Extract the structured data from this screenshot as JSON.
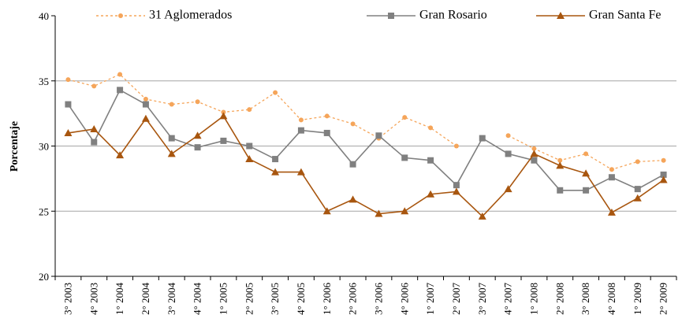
{
  "chart_data": {
    "type": "line",
    "y_label": "Porcentaje",
    "categories": [
      "3° 2003",
      "4° 2003",
      "1° 2004",
      "2° 2004",
      "3° 2004",
      "4° 2004",
      "1° 2005",
      "2° 2005",
      "3° 2005",
      "4° 2005",
      "1° 2006",
      "2° 2006",
      "3° 2006",
      "4° 2006",
      "1° 2007",
      "2° 2007",
      "3° 2007",
      "4° 2007",
      "1° 2008",
      "2° 2008",
      "3° 2008",
      "4° 2008",
      "1° 2009",
      "2° 2009"
    ],
    "series": [
      {
        "name": "31 Aglomerados",
        "color": "#f5a55a",
        "dashed": true,
        "marker": "circle",
        "values": [
          35.1,
          34.6,
          35.5,
          33.6,
          33.2,
          33.4,
          32.6,
          32.8,
          34.1,
          32.0,
          32.3,
          31.7,
          30.6,
          32.2,
          31.4,
          30.0,
          null,
          30.8,
          29.8,
          28.9,
          29.4,
          28.2,
          28.8,
          28.9
        ]
      },
      {
        "name": "Gran Rosario",
        "color": "#808080",
        "dashed": false,
        "marker": "square",
        "values": [
          33.2,
          30.3,
          34.3,
          33.2,
          30.6,
          29.9,
          30.4,
          30.0,
          29.0,
          31.2,
          31.0,
          28.6,
          30.8,
          29.1,
          28.9,
          27.0,
          30.6,
          29.4,
          28.9,
          26.6,
          26.6,
          27.6,
          26.7,
          27.8
        ]
      },
      {
        "name": "Gran Santa Fe",
        "color": "#a8560f",
        "dashed": false,
        "marker": "triangle",
        "values": [
          31.0,
          31.3,
          29.3,
          32.1,
          29.4,
          30.8,
          32.3,
          29.0,
          28.0,
          28.0,
          25.0,
          25.9,
          24.8,
          25.0,
          26.3,
          26.5,
          24.6,
          26.7,
          29.4,
          28.5,
          27.9,
          24.9,
          26.0,
          27.4
        ]
      }
    ],
    "ylim": [
      20,
      40
    ],
    "yticks": [
      20,
      25,
      30,
      35,
      40
    ],
    "grid": true
  }
}
